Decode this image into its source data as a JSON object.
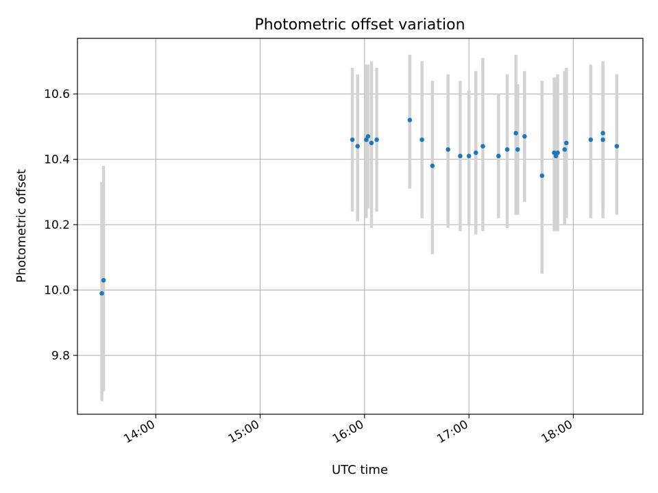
{
  "chart_data": {
    "type": "scatter",
    "title": "Photometric offset variation",
    "xlabel": "UTC time",
    "ylabel": "Photometric offset",
    "x_axis_type": "time",
    "x_ticks": [
      "14:00",
      "15:00",
      "16:00",
      "17:00",
      "18:00"
    ],
    "y_ticks": [
      "9.8",
      "10.0",
      "10.2",
      "10.4",
      "10.6"
    ],
    "xlim": [
      "13:15",
      "18:40"
    ],
    "ylim": [
      9.62,
      10.77
    ],
    "grid": true,
    "legend": "none",
    "colors": {
      "points": "#1f77b4",
      "error_bars": "#d3d3d3",
      "grid": "#b0b0b0",
      "axes": "#000000"
    },
    "points": [
      {
        "x": "13:29",
        "y": 9.99,
        "err_low": 9.66,
        "err_high": 10.33
      },
      {
        "x": "13:30",
        "y": 10.03,
        "err_low": 9.69,
        "err_high": 10.38
      },
      {
        "x": "15:53",
        "y": 10.46,
        "err_low": 10.24,
        "err_high": 10.68
      },
      {
        "x": "15:56",
        "y": 10.44,
        "err_low": 10.21,
        "err_high": 10.66
      },
      {
        "x": "16:01",
        "y": 10.46,
        "err_low": 10.22,
        "err_high": 10.69
      },
      {
        "x": "16:02",
        "y": 10.47,
        "err_low": 10.25,
        "err_high": 10.69
      },
      {
        "x": "16:04",
        "y": 10.45,
        "err_low": 10.19,
        "err_high": 10.7
      },
      {
        "x": "16:07",
        "y": 10.46,
        "err_low": 10.24,
        "err_high": 10.68
      },
      {
        "x": "16:26",
        "y": 10.52,
        "err_low": 10.31,
        "err_high": 10.72
      },
      {
        "x": "16:33",
        "y": 10.46,
        "err_low": 10.22,
        "err_high": 10.7
      },
      {
        "x": "16:39",
        "y": 10.38,
        "err_low": 10.11,
        "err_high": 10.64
      },
      {
        "x": "16:48",
        "y": 10.43,
        "err_low": 10.19,
        "err_high": 10.66
      },
      {
        "x": "16:55",
        "y": 10.41,
        "err_low": 10.18,
        "err_high": 10.64
      },
      {
        "x": "17:00",
        "y": 10.41,
        "err_low": 10.2,
        "err_high": 10.61
      },
      {
        "x": "17:04",
        "y": 10.42,
        "err_low": 10.17,
        "err_high": 10.67
      },
      {
        "x": "17:08",
        "y": 10.44,
        "err_low": 10.18,
        "err_high": 10.71
      },
      {
        "x": "17:17",
        "y": 10.41,
        "err_low": 10.22,
        "err_high": 10.6
      },
      {
        "x": "17:22",
        "y": 10.43,
        "err_low": 10.19,
        "err_high": 10.66
      },
      {
        "x": "17:27",
        "y": 10.48,
        "err_low": 10.23,
        "err_high": 10.72
      },
      {
        "x": "17:28",
        "y": 10.43,
        "err_low": 10.23,
        "err_high": 10.63
      },
      {
        "x": "17:32",
        "y": 10.47,
        "err_low": 10.27,
        "err_high": 10.67
      },
      {
        "x": "17:42",
        "y": 10.35,
        "err_low": 10.05,
        "err_high": 10.64
      },
      {
        "x": "17:49",
        "y": 10.42,
        "err_low": 10.18,
        "err_high": 10.65
      },
      {
        "x": "17:50",
        "y": 10.41,
        "err_low": 10.18,
        "err_high": 10.65
      },
      {
        "x": "17:51",
        "y": 10.42,
        "err_low": 10.18,
        "err_high": 10.66
      },
      {
        "x": "17:55",
        "y": 10.43,
        "err_low": 10.2,
        "err_high": 10.67
      },
      {
        "x": "17:56",
        "y": 10.45,
        "err_low": 10.22,
        "err_high": 10.68
      },
      {
        "x": "18:10",
        "y": 10.46,
        "err_low": 10.22,
        "err_high": 10.69
      },
      {
        "x": "18:17",
        "y": 10.46,
        "err_low": 10.22,
        "err_high": 10.7
      },
      {
        "x": "18:17",
        "y": 10.48,
        "err_low": 10.26,
        "err_high": 10.69
      },
      {
        "x": "18:25",
        "y": 10.44,
        "err_low": 10.23,
        "err_high": 10.66
      }
    ]
  }
}
